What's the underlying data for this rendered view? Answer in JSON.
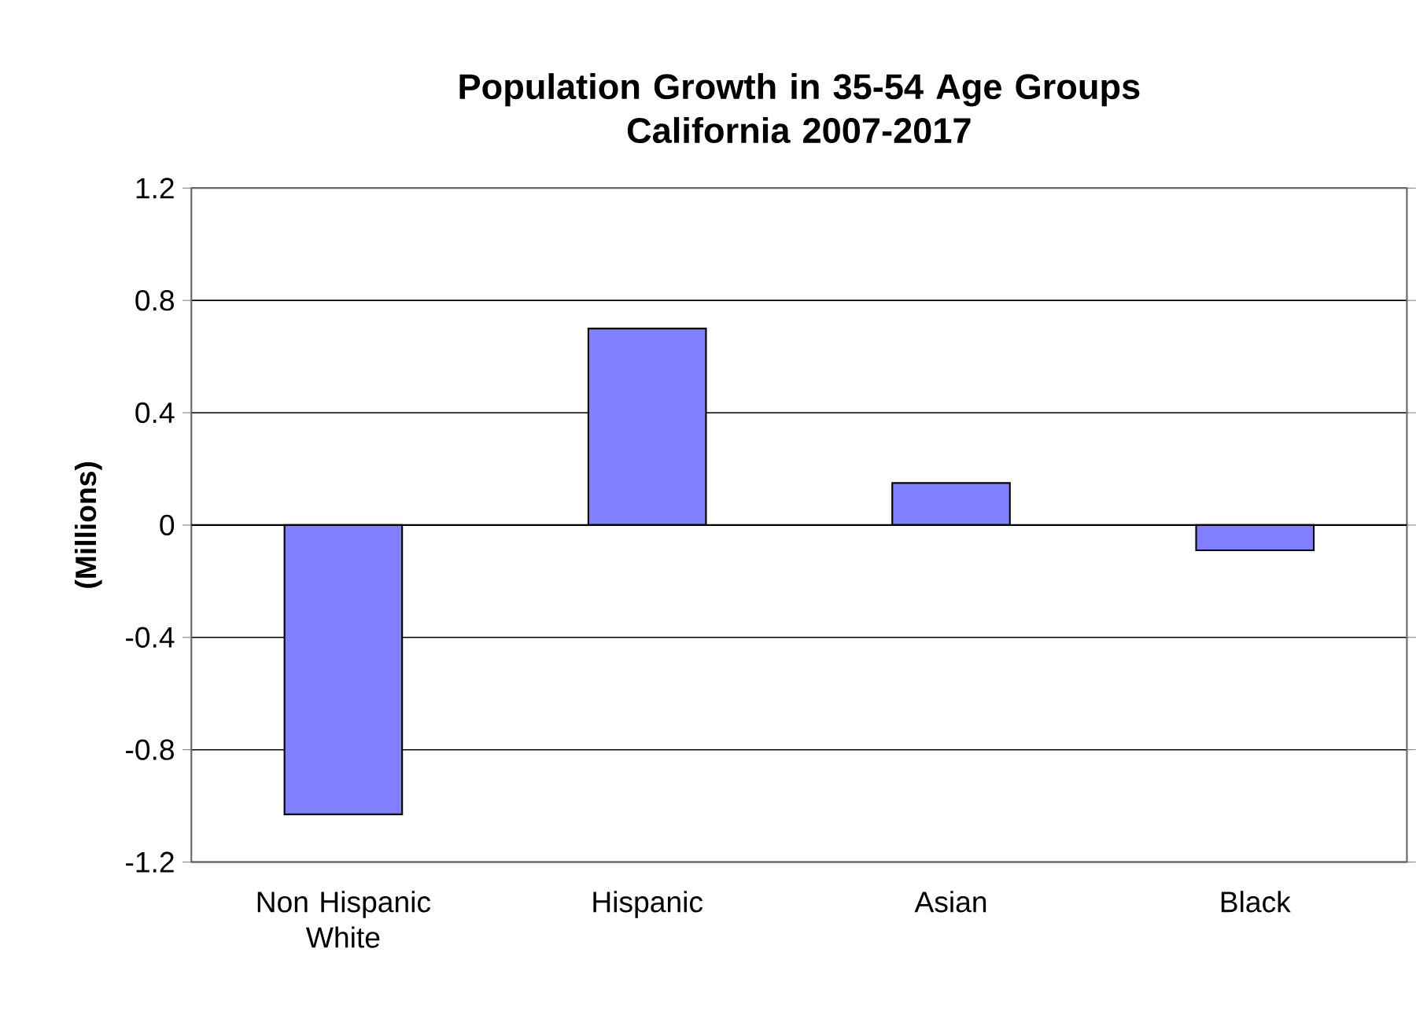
{
  "chart_data": {
    "type": "bar",
    "title": "Population Growth in 35-54 Age Groups\nCalifornia 2007-2017",
    "ylabel": "(Millions)",
    "categories": [
      "Non Hispanic White",
      "Hispanic",
      "Asian",
      "Black"
    ],
    "values": [
      -1.03,
      0.7,
      0.15,
      -0.09
    ],
    "color": "#8080ff",
    "ylim": [
      -1.2,
      1.2
    ],
    "yticks": [
      -1.2,
      -0.8,
      -0.4,
      0,
      0.4,
      0.8,
      1.2
    ],
    "grid": "y"
  }
}
